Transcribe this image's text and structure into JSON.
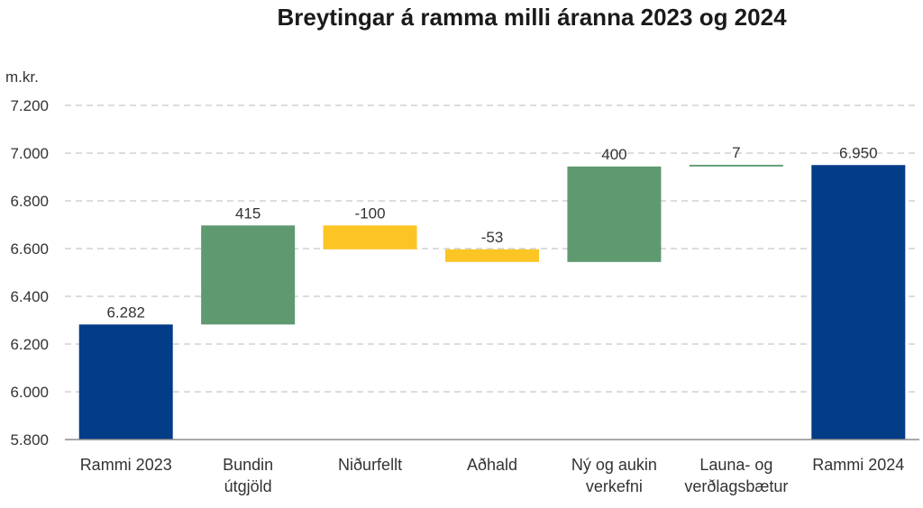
{
  "chart_data": {
    "type": "bar",
    "subtype": "waterfall",
    "title": "Breytingar á ramma milli áranna 2023 og 2024",
    "ylabel": "m.kr.",
    "xlabel": "",
    "ylim": [
      5800,
      7200
    ],
    "yticks": [
      "5.800",
      "6.000",
      "6.200",
      "6.400",
      "6.600",
      "6.800",
      "7.000",
      "7.200"
    ],
    "ytick_values": [
      5800,
      6000,
      6200,
      6400,
      6600,
      6800,
      7000,
      7200
    ],
    "grid": true,
    "legend": "none",
    "categories": [
      [
        "Rammi 2023"
      ],
      [
        "Bundin",
        "útgjöld"
      ],
      [
        "Niðurfellt"
      ],
      [
        "Aðhald"
      ],
      [
        "Ný og aukin",
        "verkefni"
      ],
      [
        "Launa- og",
        "verðlagsbætur"
      ],
      [
        "Rammi 2024"
      ]
    ],
    "bars": [
      {
        "kind": "total",
        "start": 5800,
        "end": 6282,
        "label": "6.282"
      },
      {
        "kind": "increase",
        "start": 6282,
        "end": 6697,
        "label": "415"
      },
      {
        "kind": "decrease",
        "start": 6697,
        "end": 6597,
        "label": "-100"
      },
      {
        "kind": "decrease",
        "start": 6597,
        "end": 6544,
        "label": "-53"
      },
      {
        "kind": "increase",
        "start": 6544,
        "end": 6944,
        "label": "400"
      },
      {
        "kind": "increase",
        "start": 6944,
        "end": 6951,
        "label": "7"
      },
      {
        "kind": "total",
        "start": 5800,
        "end": 6950,
        "label": "6.950"
      }
    ],
    "colors": {
      "total": "#033C87",
      "increase": "#5F9970",
      "decrease": "#FCC525",
      "grid": "#C8C8C8",
      "axis": "#8C8C8C"
    }
  }
}
